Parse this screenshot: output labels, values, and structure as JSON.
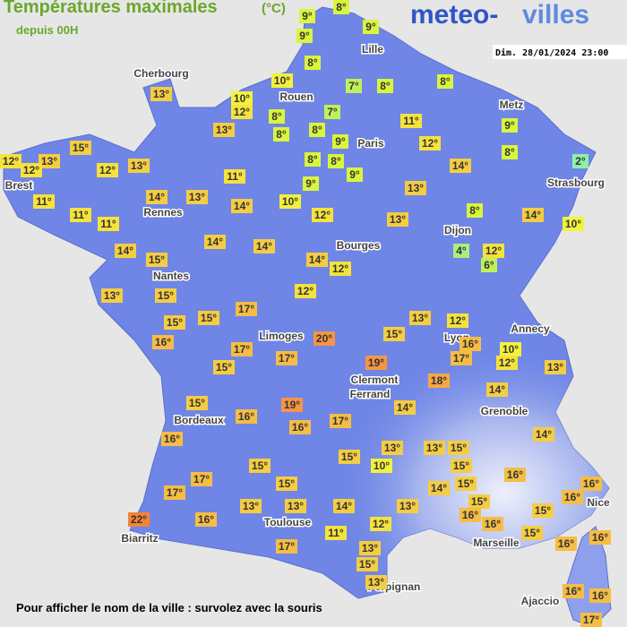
{
  "header": {
    "title": "Températures maximales",
    "unit": "(°C)",
    "subtitle": "depuis 00H"
  },
  "logo": {
    "left": "meteo-",
    "right": "villes"
  },
  "timestamp": "Dim. 28/01/2024 23:00",
  "cities": [
    "Cherbourg",
    "Lille",
    "Rouen",
    "Metz",
    "Paris",
    "Brest",
    "Strasbourg",
    "Rennes",
    "Dijon",
    "Bourges",
    "Nantes",
    "Annecy",
    "Limoges",
    "Lyon",
    "Clermont",
    "Ferrand",
    "Grenoble",
    "Bordeaux",
    "Nice",
    "Toulouse",
    "Marseille",
    "Biarritz",
    "Perpignan",
    "Ajaccio"
  ],
  "temperatures": [
    "9°",
    "8°",
    "9°",
    "9°",
    "8°",
    "8°",
    "10°",
    "7°",
    "8°",
    "13°",
    "10°",
    "12°",
    "8°",
    "7°",
    "11°",
    "9°",
    "13°",
    "8°",
    "8°",
    "9°",
    "12°",
    "8°",
    "15°",
    "12°",
    "13°",
    "12°",
    "12°",
    "13°",
    "8°",
    "8°",
    "14°",
    "2°",
    "11°",
    "9°",
    "9°",
    "11°",
    "14°",
    "13°",
    "14°",
    "10°",
    "13°",
    "11°",
    "11°",
    "12°",
    "13°",
    "8°",
    "14°",
    "10°",
    "14°",
    "14°",
    "14°",
    "15°",
    "4°",
    "12°",
    "6°",
    "14°",
    "12°",
    "13°",
    "15°",
    "12°",
    "17°",
    "15°",
    "15°",
    "13°",
    "12°",
    "16°",
    "20°",
    "15°",
    "16°",
    "10°",
    "17°",
    "19°",
    "12°",
    "13°",
    "17°",
    "15°",
    "17°",
    "18°",
    "14°",
    "15°",
    "19°",
    "14°",
    "16°",
    "17°",
    "16°",
    "16°",
    "14°",
    "13°",
    "13°",
    "15°",
    "15°",
    "10°",
    "15°",
    "16°",
    "15°",
    "17°",
    "15°",
    "14°",
    "15°",
    "16°",
    "16°",
    "17°",
    "13°",
    "13°",
    "14°",
    "13°",
    "15°",
    "15°",
    "16°",
    "16°",
    "16°",
    "22°",
    "12°",
    "15°",
    "11°",
    "16°",
    "16°",
    "17°",
    "13°",
    "15°",
    "13°",
    "16°",
    "16°",
    "17°"
  ],
  "footer": "Pour afficher le nom de la ville : survolez avec la souris"
}
